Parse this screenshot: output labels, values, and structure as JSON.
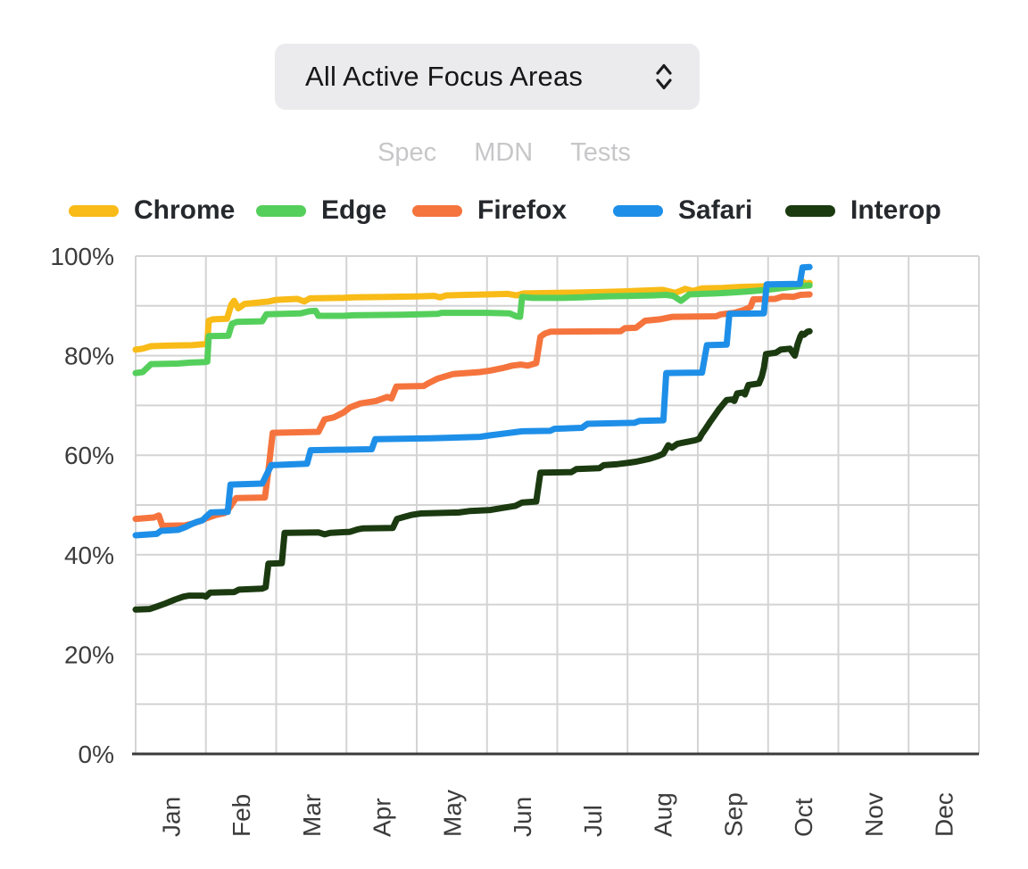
{
  "dropdown": {
    "label": "All Active Focus Areas",
    "chevron_icon": "up-down-chevron"
  },
  "links": [
    {
      "label": "Spec"
    },
    {
      "label": "MDN"
    },
    {
      "label": "Tests"
    }
  ],
  "colors": {
    "dropdown_bg": "#ebebed",
    "link_text": "#c7c7c9",
    "gridline": "#d4d4d4",
    "axis_line": "#3b3b3b",
    "tick_text": "#3c3c3c"
  },
  "chart_data": {
    "type": "line",
    "title": "",
    "xlabel": "",
    "ylabel": "",
    "x_axis": {
      "unit": "month",
      "range": [
        0,
        12
      ],
      "tick_labels": [
        "Jan",
        "Feb",
        "Mar",
        "Apr",
        "May",
        "Jun",
        "Jul",
        "Aug",
        "Sep",
        "Oct",
        "Nov",
        "Dec"
      ]
    },
    "y_axis": {
      "unit": "percent",
      "range": [
        0,
        100
      ],
      "gridline_step": 10,
      "tick_labels": [
        "0%",
        "20%",
        "40%",
        "60%",
        "80%",
        "100%"
      ]
    },
    "grid": true,
    "legend_position": "top",
    "series": [
      {
        "name": "Chrome",
        "color": "#F8BB17",
        "points": [
          [
            0,
            81.2
          ],
          [
            0.1,
            81.4
          ],
          [
            0.22,
            81.9
          ],
          [
            0.45,
            82.0
          ],
          [
            0.8,
            82.1
          ],
          [
            0.97,
            82.3
          ],
          [
            1.02,
            82.4
          ],
          [
            1.04,
            87.0
          ],
          [
            1.1,
            87.3
          ],
          [
            1.3,
            87.4
          ],
          [
            1.36,
            90.2
          ],
          [
            1.4,
            91.0
          ],
          [
            1.46,
            89.5
          ],
          [
            1.55,
            90.4
          ],
          [
            1.7,
            90.6
          ],
          [
            1.9,
            90.9
          ],
          [
            2.0,
            91.2
          ],
          [
            2.3,
            91.4
          ],
          [
            2.4,
            90.9
          ],
          [
            2.48,
            91.5
          ],
          [
            2.95,
            91.6
          ],
          [
            3.1,
            91.7
          ],
          [
            3.6,
            91.8
          ],
          [
            4.0,
            91.9
          ],
          [
            4.25,
            92.0
          ],
          [
            4.33,
            91.7
          ],
          [
            4.42,
            92.1
          ],
          [
            4.7,
            92.2
          ],
          [
            5.0,
            92.3
          ],
          [
            5.3,
            92.4
          ],
          [
            5.42,
            92.1
          ],
          [
            5.52,
            92.5
          ],
          [
            6.0,
            92.6
          ],
          [
            6.35,
            92.7
          ],
          [
            6.65,
            92.8
          ],
          [
            6.95,
            92.9
          ],
          [
            7.1,
            93.0
          ],
          [
            7.3,
            93.1
          ],
          [
            7.5,
            93.2
          ],
          [
            7.68,
            92.6
          ],
          [
            7.82,
            93.4
          ],
          [
            7.93,
            93.0
          ],
          [
            8.06,
            93.5
          ],
          [
            8.35,
            93.6
          ],
          [
            8.6,
            93.8
          ],
          [
            8.9,
            93.9
          ],
          [
            9.05,
            94.0
          ],
          [
            9.18,
            94.2
          ],
          [
            9.31,
            93.9
          ],
          [
            9.42,
            94.3
          ],
          [
            9.5,
            94.8
          ],
          [
            9.54,
            94.4
          ],
          [
            9.59,
            94.6
          ]
        ]
      },
      {
        "name": "Edge",
        "color": "#55CF5C",
        "points": [
          [
            0,
            76.5
          ],
          [
            0.1,
            76.7
          ],
          [
            0.22,
            78.3
          ],
          [
            0.6,
            78.4
          ],
          [
            0.78,
            78.6
          ],
          [
            0.97,
            78.7
          ],
          [
            1.02,
            78.8
          ],
          [
            1.04,
            83.9
          ],
          [
            1.32,
            84.0
          ],
          [
            1.37,
            86.4
          ],
          [
            1.44,
            86.8
          ],
          [
            1.8,
            86.9
          ],
          [
            1.86,
            88.3
          ],
          [
            2.35,
            88.5
          ],
          [
            2.47,
            88.9
          ],
          [
            2.56,
            89.0
          ],
          [
            2.6,
            88.0
          ],
          [
            2.95,
            88.0
          ],
          [
            3.1,
            88.1
          ],
          [
            3.8,
            88.2
          ],
          [
            4.05,
            88.3
          ],
          [
            4.3,
            88.4
          ],
          [
            4.35,
            88.6
          ],
          [
            5.0,
            88.6
          ],
          [
            5.32,
            88.5
          ],
          [
            5.42,
            87.9
          ],
          [
            5.47,
            87.8
          ],
          [
            5.5,
            91.8
          ],
          [
            5.65,
            91.6
          ],
          [
            6.05,
            91.6
          ],
          [
            6.35,
            91.7
          ],
          [
            6.65,
            91.9
          ],
          [
            7.05,
            92.0
          ],
          [
            7.35,
            92.1
          ],
          [
            7.55,
            92.2
          ],
          [
            7.65,
            92.0
          ],
          [
            7.76,
            91.0
          ],
          [
            7.88,
            92.3
          ],
          [
            8.05,
            92.4
          ],
          [
            8.25,
            92.5
          ],
          [
            8.4,
            92.6
          ],
          [
            8.6,
            92.8
          ],
          [
            8.8,
            93.0
          ],
          [
            8.98,
            93.2
          ],
          [
            9.15,
            93.5
          ],
          [
            9.32,
            93.8
          ],
          [
            9.47,
            94.0
          ],
          [
            9.59,
            94.1
          ]
        ]
      },
      {
        "name": "Firefox",
        "color": "#F5743D",
        "points": [
          [
            0,
            47.2
          ],
          [
            0.26,
            47.5
          ],
          [
            0.33,
            47.9
          ],
          [
            0.38,
            45.8
          ],
          [
            0.7,
            45.9
          ],
          [
            0.82,
            46.3
          ],
          [
            0.92,
            46.8
          ],
          [
            1.0,
            47.3
          ],
          [
            1.14,
            48.0
          ],
          [
            1.27,
            48.4
          ],
          [
            1.33,
            49.3
          ],
          [
            1.39,
            50.6
          ],
          [
            1.43,
            51.4
          ],
          [
            1.84,
            51.5
          ],
          [
            1.89,
            57.0
          ],
          [
            1.95,
            64.5
          ],
          [
            2.6,
            64.7
          ],
          [
            2.69,
            67.2
          ],
          [
            2.82,
            67.6
          ],
          [
            2.96,
            68.6
          ],
          [
            3.05,
            69.6
          ],
          [
            3.2,
            70.4
          ],
          [
            3.42,
            70.9
          ],
          [
            3.58,
            71.7
          ],
          [
            3.64,
            71.4
          ],
          [
            3.71,
            73.8
          ],
          [
            4.1,
            73.9
          ],
          [
            4.16,
            74.4
          ],
          [
            4.3,
            75.4
          ],
          [
            4.42,
            75.9
          ],
          [
            4.52,
            76.3
          ],
          [
            4.9,
            76.7
          ],
          [
            5.05,
            77.0
          ],
          [
            5.22,
            77.5
          ],
          [
            5.36,
            78.0
          ],
          [
            5.48,
            78.2
          ],
          [
            5.58,
            78.0
          ],
          [
            5.7,
            78.5
          ],
          [
            5.76,
            83.8
          ],
          [
            5.82,
            84.4
          ],
          [
            5.9,
            84.8
          ],
          [
            6.9,
            84.9
          ],
          [
            6.96,
            85.5
          ],
          [
            7.12,
            85.6
          ],
          [
            7.25,
            87.0
          ],
          [
            7.46,
            87.3
          ],
          [
            7.64,
            87.8
          ],
          [
            8.26,
            87.9
          ],
          [
            8.33,
            88.3
          ],
          [
            8.52,
            88.6
          ],
          [
            8.66,
            89.2
          ],
          [
            8.75,
            89.8
          ],
          [
            8.79,
            91.3
          ],
          [
            9.1,
            91.4
          ],
          [
            9.21,
            91.9
          ],
          [
            9.36,
            91.8
          ],
          [
            9.46,
            92.2
          ],
          [
            9.59,
            92.3
          ]
        ]
      },
      {
        "name": "Safari",
        "color": "#1E8FE8",
        "points": [
          [
            0,
            43.9
          ],
          [
            0.3,
            44.2
          ],
          [
            0.36,
            44.8
          ],
          [
            0.6,
            45.0
          ],
          [
            0.7,
            45.5
          ],
          [
            0.8,
            46.2
          ],
          [
            0.87,
            46.6
          ],
          [
            0.95,
            46.9
          ],
          [
            1.0,
            47.6
          ],
          [
            1.07,
            48.5
          ],
          [
            1.31,
            48.6
          ],
          [
            1.35,
            54.1
          ],
          [
            1.8,
            54.3
          ],
          [
            1.87,
            56.3
          ],
          [
            1.93,
            58.0
          ],
          [
            2.44,
            58.3
          ],
          [
            2.49,
            61.0
          ],
          [
            3.36,
            61.2
          ],
          [
            3.41,
            63.2
          ],
          [
            4.2,
            63.4
          ],
          [
            4.9,
            63.7
          ],
          [
            5.05,
            64.0
          ],
          [
            5.22,
            64.3
          ],
          [
            5.5,
            64.8
          ],
          [
            5.9,
            64.9
          ],
          [
            5.96,
            65.3
          ],
          [
            6.35,
            65.5
          ],
          [
            6.43,
            66.3
          ],
          [
            7.1,
            66.5
          ],
          [
            7.17,
            66.9
          ],
          [
            7.51,
            67.0
          ],
          [
            7.55,
            76.5
          ],
          [
            8.06,
            76.6
          ],
          [
            8.13,
            82.1
          ],
          [
            8.41,
            82.2
          ],
          [
            8.45,
            88.4
          ],
          [
            8.94,
            88.5
          ],
          [
            8.98,
            94.3
          ],
          [
            9.45,
            94.4
          ],
          [
            9.49,
            97.7
          ],
          [
            9.59,
            97.8
          ]
        ]
      },
      {
        "name": "Interop",
        "color": "#1B3A10",
        "points": [
          [
            0,
            29.0
          ],
          [
            0.2,
            29.1
          ],
          [
            0.28,
            29.5
          ],
          [
            0.42,
            30.2
          ],
          [
            0.56,
            31.0
          ],
          [
            0.68,
            31.6
          ],
          [
            0.76,
            31.8
          ],
          [
            0.96,
            31.8
          ],
          [
            1.0,
            31.6
          ],
          [
            1.06,
            32.4
          ],
          [
            1.4,
            32.5
          ],
          [
            1.47,
            33.0
          ],
          [
            1.8,
            33.2
          ],
          [
            1.85,
            33.5
          ],
          [
            1.89,
            38.2
          ],
          [
            2.08,
            38.3
          ],
          [
            2.12,
            44.4
          ],
          [
            2.6,
            44.5
          ],
          [
            2.69,
            44.1
          ],
          [
            2.77,
            44.4
          ],
          [
            3.05,
            44.6
          ],
          [
            3.16,
            45.1
          ],
          [
            3.24,
            45.3
          ],
          [
            3.66,
            45.4
          ],
          [
            3.72,
            47.2
          ],
          [
            3.82,
            47.6
          ],
          [
            3.92,
            48.0
          ],
          [
            4.06,
            48.3
          ],
          [
            4.6,
            48.5
          ],
          [
            4.76,
            48.8
          ],
          [
            5.05,
            49.0
          ],
          [
            5.22,
            49.4
          ],
          [
            5.4,
            49.8
          ],
          [
            5.5,
            50.5
          ],
          [
            5.7,
            50.7
          ],
          [
            5.76,
            56.5
          ],
          [
            6.2,
            56.6
          ],
          [
            6.27,
            57.2
          ],
          [
            6.6,
            57.4
          ],
          [
            6.66,
            58.0
          ],
          [
            6.86,
            58.2
          ],
          [
            7.02,
            58.5
          ],
          [
            7.12,
            58.7
          ],
          [
            7.22,
            59.0
          ],
          [
            7.32,
            59.3
          ],
          [
            7.43,
            59.8
          ],
          [
            7.51,
            60.3
          ],
          [
            7.58,
            62.0
          ],
          [
            7.63,
            61.5
          ],
          [
            7.71,
            62.3
          ],
          [
            7.86,
            62.7
          ],
          [
            7.96,
            63.0
          ],
          [
            8.02,
            63.3
          ],
          [
            8.06,
            64.3
          ],
          [
            8.11,
            65.3
          ],
          [
            8.17,
            66.6
          ],
          [
            8.24,
            68.0
          ],
          [
            8.3,
            69.2
          ],
          [
            8.37,
            70.4
          ],
          [
            8.41,
            71.1
          ],
          [
            8.49,
            71.2
          ],
          [
            8.52,
            70.9
          ],
          [
            8.56,
            72.4
          ],
          [
            8.64,
            72.6
          ],
          [
            8.67,
            72.2
          ],
          [
            8.72,
            74.1
          ],
          [
            8.87,
            74.4
          ],
          [
            8.91,
            75.8
          ],
          [
            8.94,
            77.5
          ],
          [
            8.97,
            80.3
          ],
          [
            9.11,
            80.6
          ],
          [
            9.18,
            81.2
          ],
          [
            9.31,
            81.4
          ],
          [
            9.38,
            80.0
          ],
          [
            9.42,
            82.3
          ],
          [
            9.46,
            83.9
          ],
          [
            9.48,
            84.4
          ],
          [
            9.51,
            84.2
          ],
          [
            9.56,
            84.8
          ],
          [
            9.59,
            84.9
          ]
        ]
      }
    ]
  }
}
